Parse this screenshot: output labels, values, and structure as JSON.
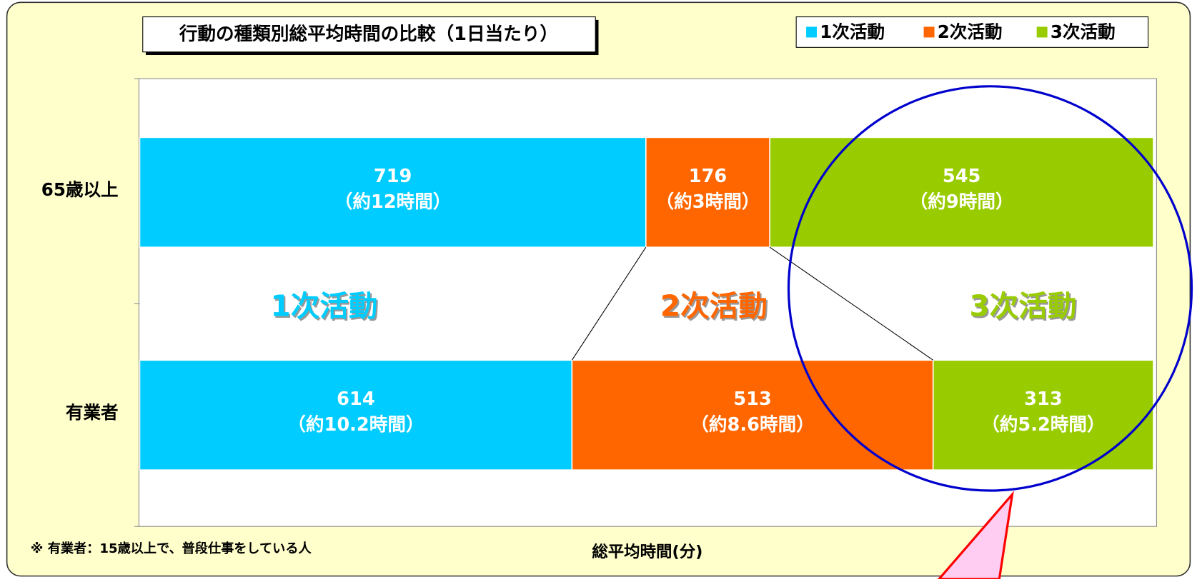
{
  "chart_data": {
    "type": "stacked-bar-horizontal",
    "title": "行動の種類別総平均時間の比較（1日当たり）",
    "categories": [
      "65歳以上",
      "有業者"
    ],
    "series": [
      {
        "name": "1次活動",
        "color": "#00ccff",
        "values": [
          719,
          614
        ],
        "hour_labels": [
          "（約12時間）",
          "（約10.2時間）"
        ]
      },
      {
        "name": "2次活動",
        "color": "#ff6600",
        "values": [
          176,
          513
        ],
        "hour_labels": [
          "（約3時間）",
          "（約8.6時間）"
        ]
      },
      {
        "name": "3次活動",
        "color": "#99cc00",
        "values": [
          545,
          313
        ],
        "hour_labels": [
          "（約9時間）",
          "（約5.2時間）"
        ]
      }
    ],
    "xlim": [
      0,
      1440
    ],
    "x_label": "総平均時間(分)",
    "note": "※ 有業者：15歳以上で、普段仕事をしている人",
    "legend": "top-right"
  }
}
